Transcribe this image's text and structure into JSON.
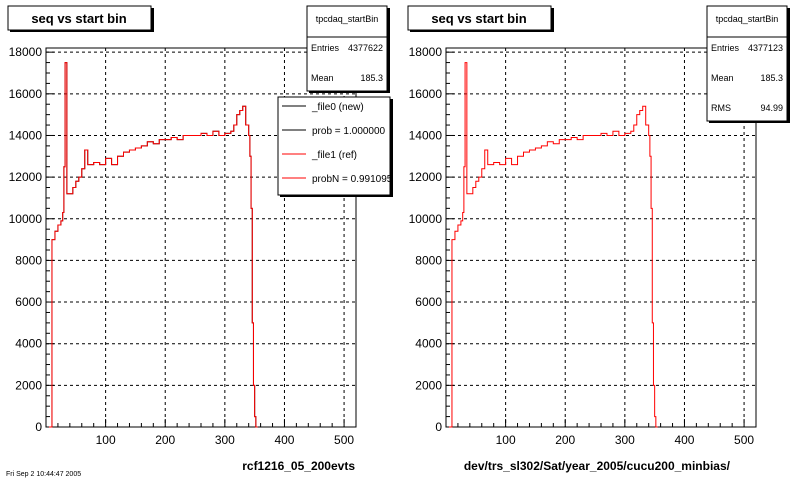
{
  "chart_data": [
    {
      "type": "line",
      "title": "seq vs start bin",
      "xlabel": "rcf1216_05_200evts",
      "ylabel": "",
      "xlim": [
        0,
        520
      ],
      "ylim": [
        0,
        18200
      ],
      "x_ticks": [
        100,
        200,
        300,
        400,
        500
      ],
      "y_ticks": [
        0,
        2000,
        4000,
        6000,
        8000,
        10000,
        12000,
        14000,
        16000,
        18000
      ],
      "grid": true,
      "stats": {
        "name": "tpcdaq_startBin",
        "rows": [
          {
            "label": "Entries",
            "value": "4377622"
          },
          {
            "label": "Mean",
            "value": "185.3"
          }
        ]
      },
      "legend": [
        {
          "label": "_file0 (new)",
          "color": "#000000"
        },
        {
          "label": "prob = 1.000000",
          "color": "#000000"
        },
        {
          "label": "_file1 (ref)",
          "color": "#ff0000"
        },
        {
          "label": "probN = 0.991095",
          "color": "#ff0000"
        }
      ],
      "series": [
        {
          "name": "_file0 (new)",
          "color": "#000000",
          "x": [
            5,
            10,
            15,
            20,
            25,
            28,
            30,
            32,
            35,
            40,
            45,
            50,
            55,
            60,
            65,
            70,
            80,
            90,
            100,
            110,
            120,
            130,
            140,
            150,
            160,
            170,
            180,
            190,
            200,
            210,
            220,
            230,
            240,
            250,
            260,
            270,
            280,
            290,
            300,
            310,
            315,
            320,
            325,
            330,
            335,
            340,
            342,
            344,
            346,
            348,
            350,
            352,
            355
          ],
          "y": [
            0,
            9000,
            9400,
            9700,
            9900,
            10300,
            12500,
            17500,
            11200,
            11200,
            11500,
            11800,
            12000,
            12400,
            13300,
            12600,
            12700,
            12600,
            12900,
            12600,
            13000,
            13200,
            13300,
            13400,
            13500,
            13700,
            13600,
            13800,
            13800,
            13900,
            13800,
            14000,
            14000,
            14000,
            14100,
            14000,
            14200,
            14000,
            14100,
            14200,
            14500,
            15000,
            15200,
            15400,
            14500,
            14000,
            13000,
            10500,
            5000,
            2000,
            500,
            0,
            0
          ]
        },
        {
          "name": "_file1 (ref)",
          "color": "#ff0000",
          "x": [
            5,
            10,
            15,
            20,
            25,
            28,
            30,
            32,
            35,
            40,
            45,
            50,
            55,
            60,
            65,
            70,
            80,
            90,
            100,
            110,
            120,
            130,
            140,
            150,
            160,
            170,
            180,
            190,
            200,
            210,
            220,
            230,
            240,
            250,
            260,
            270,
            280,
            290,
            300,
            310,
            315,
            320,
            325,
            330,
            335,
            340,
            342,
            344,
            346,
            348,
            350,
            352,
            355
          ],
          "y": [
            0,
            9000,
            9400,
            9700,
            9900,
            10300,
            12500,
            17500,
            11200,
            11200,
            11500,
            11800,
            12000,
            12400,
            13300,
            12600,
            12700,
            12600,
            12900,
            12600,
            13000,
            13200,
            13300,
            13400,
            13500,
            13700,
            13600,
            13800,
            13800,
            13900,
            13800,
            14000,
            14000,
            14000,
            14100,
            14000,
            14200,
            14000,
            14100,
            14200,
            14500,
            15000,
            15200,
            15400,
            14500,
            14000,
            13000,
            10500,
            5000,
            2000,
            500,
            0,
            0
          ]
        }
      ]
    },
    {
      "type": "line",
      "title": "seq vs start bin",
      "xlabel": "dev/trs_sl302/Sat/year_2005/cucu200_minbias/",
      "ylabel": "",
      "xlim": [
        0,
        520
      ],
      "ylim": [
        0,
        18200
      ],
      "x_ticks": [
        100,
        200,
        300,
        400,
        500
      ],
      "y_ticks": [
        0,
        2000,
        4000,
        6000,
        8000,
        10000,
        12000,
        14000,
        16000,
        18000
      ],
      "grid": true,
      "stats": {
        "name": "tpcdaq_startBin",
        "rows": [
          {
            "label": "Entries",
            "value": "4377123"
          },
          {
            "label": "Mean",
            "value": "185.3"
          },
          {
            "label": "RMS",
            "value": "94.99"
          }
        ]
      },
      "legend": [],
      "series": [
        {
          "name": "",
          "color": "#ff0000",
          "x": [
            5,
            10,
            15,
            20,
            25,
            28,
            30,
            32,
            35,
            40,
            45,
            50,
            55,
            60,
            65,
            70,
            80,
            90,
            100,
            110,
            120,
            130,
            140,
            150,
            160,
            170,
            180,
            190,
            200,
            210,
            220,
            230,
            240,
            250,
            260,
            270,
            280,
            290,
            300,
            310,
            315,
            320,
            325,
            330,
            335,
            340,
            342,
            344,
            346,
            348,
            350,
            352,
            355
          ],
          "y": [
            0,
            9000,
            9400,
            9700,
            9900,
            10300,
            12500,
            17500,
            11200,
            11200,
            11500,
            11800,
            12000,
            12400,
            13300,
            12600,
            12700,
            12600,
            12900,
            12600,
            13000,
            13200,
            13300,
            13400,
            13500,
            13700,
            13600,
            13800,
            13800,
            13900,
            13800,
            14000,
            14000,
            14000,
            14100,
            14000,
            14200,
            14000,
            14100,
            14200,
            14500,
            15000,
            15200,
            15400,
            14500,
            14000,
            13000,
            10500,
            5000,
            2000,
            500,
            0,
            0
          ]
        }
      ]
    }
  ],
  "footer_text": "Fri Sep 2 10:44:47 2005"
}
